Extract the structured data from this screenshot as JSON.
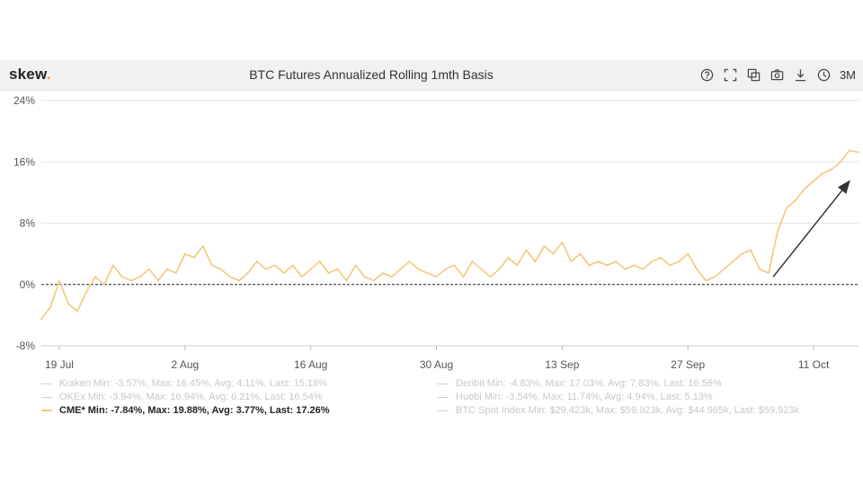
{
  "app": {
    "logo_text": "skew",
    "logo_dot": ".",
    "title": "BTC Futures Annualized Rolling 1mth Basis"
  },
  "toolbar": {
    "icons": [
      "help-icon",
      "fullscreen-icon",
      "copy-icon",
      "camera-icon",
      "download-icon",
      "clock-icon"
    ],
    "range": "3M"
  },
  "colors": {
    "series": "#f2c879",
    "arrow": "#333333",
    "zero_line": "#222222",
    "grid": "#e6e6e6"
  },
  "chart_data": {
    "type": "line",
    "x_ticks": [
      "19 Jul",
      "2 Aug",
      "16 Aug",
      "30 Aug",
      "13 Sep",
      "27 Sep",
      "11 Oct"
    ],
    "y_ticks": [
      "24%",
      "16%",
      "8%",
      "0%",
      "-8%"
    ],
    "y_values": [
      24,
      16,
      8,
      0,
      -8
    ],
    "ylim": [
      -8,
      24
    ],
    "xlim_days": [
      -2,
      89
    ],
    "series": [
      {
        "name": "CME*",
        "points": [
          [
            -2,
            -4.5
          ],
          [
            -1,
            -3.0
          ],
          [
            0,
            0.5
          ],
          [
            1,
            -2.5
          ],
          [
            2,
            -3.5
          ],
          [
            3,
            -1.0
          ],
          [
            4,
            1.0
          ],
          [
            5,
            0.0
          ],
          [
            6,
            2.5
          ],
          [
            7,
            1.0
          ],
          [
            8,
            0.5
          ],
          [
            9,
            1.0
          ],
          [
            10,
            2.0
          ],
          [
            11,
            0.5
          ],
          [
            12,
            2.0
          ],
          [
            13,
            1.5
          ],
          [
            14,
            4.0
          ],
          [
            15,
            3.5
          ],
          [
            16,
            5.0
          ],
          [
            17,
            2.5
          ],
          [
            18,
            2.0
          ],
          [
            19,
            1.0
          ],
          [
            20,
            0.5
          ],
          [
            21,
            1.5
          ],
          [
            22,
            3.0
          ],
          [
            23,
            2.0
          ],
          [
            24,
            2.5
          ],
          [
            25,
            1.5
          ],
          [
            26,
            2.5
          ],
          [
            27,
            1.0
          ],
          [
            28,
            2.0
          ],
          [
            29,
            3.0
          ],
          [
            30,
            1.5
          ],
          [
            31,
            2.0
          ],
          [
            32,
            0.5
          ],
          [
            33,
            2.5
          ],
          [
            34,
            1.0
          ],
          [
            35,
            0.5
          ],
          [
            36,
            1.5
          ],
          [
            37,
            1.0
          ],
          [
            38,
            2.0
          ],
          [
            39,
            3.0
          ],
          [
            40,
            2.0
          ],
          [
            41,
            1.5
          ],
          [
            42,
            1.0
          ],
          [
            43,
            2.0
          ],
          [
            44,
            2.5
          ],
          [
            45,
            1.0
          ],
          [
            46,
            3.0
          ],
          [
            47,
            2.0
          ],
          [
            48,
            1.0
          ],
          [
            49,
            2.0
          ],
          [
            50,
            3.5
          ],
          [
            51,
            2.5
          ],
          [
            52,
            4.5
          ],
          [
            53,
            3.0
          ],
          [
            54,
            5.0
          ],
          [
            55,
            4.0
          ],
          [
            56,
            5.5
          ],
          [
            57,
            3.0
          ],
          [
            58,
            4.0
          ],
          [
            59,
            2.5
          ],
          [
            60,
            3.0
          ],
          [
            61,
            2.5
          ],
          [
            62,
            3.0
          ],
          [
            63,
            2.0
          ],
          [
            64,
            2.5
          ],
          [
            65,
            2.0
          ],
          [
            66,
            3.0
          ],
          [
            67,
            3.5
          ],
          [
            68,
            2.5
          ],
          [
            69,
            3.0
          ],
          [
            70,
            4.0
          ],
          [
            71,
            2.0
          ],
          [
            72,
            0.5
          ],
          [
            73,
            1.0
          ],
          [
            74,
            2.0
          ],
          [
            75,
            3.0
          ],
          [
            76,
            4.0
          ],
          [
            77,
            4.5
          ],
          [
            78,
            2.0
          ],
          [
            79,
            1.5
          ],
          [
            80,
            7.0
          ],
          [
            81,
            10.0
          ],
          [
            82,
            11.0
          ],
          [
            83,
            12.5
          ],
          [
            84,
            13.5
          ],
          [
            85,
            14.5
          ],
          [
            86,
            15.0
          ],
          [
            87,
            16.0
          ],
          [
            88,
            17.5
          ],
          [
            89,
            17.26
          ]
        ]
      }
    ]
  },
  "legend": [
    {
      "name": "Kraken",
      "stats": "Min: -3.57%, Max: 16.45%, Avg: 4.11%, Last: 15.18%"
    },
    {
      "name": "OKEx",
      "stats": "Min: -3.94%, Max: 16.94%, Avg: 6.21%, Last: 16.54%"
    },
    {
      "name": "CME*",
      "stats": "Min: -7.84%, Max: 19.88%, Avg: 3.77%, Last: 17.26%"
    },
    {
      "name": "Deribit",
      "stats": "Min: -4.83%, Max: 17.03%, Avg: 7.83%, Last: 16.56%"
    },
    {
      "name": "Huobi",
      "stats": "Min: -3.54%, Max: 11.74%, Avg: 4.94%, Last: 5.13%"
    },
    {
      "name": "BTC Spot Index",
      "stats": "Min: $29.423k, Max: $59.923k, Avg: $44.985k, Last: $59.923k"
    }
  ]
}
